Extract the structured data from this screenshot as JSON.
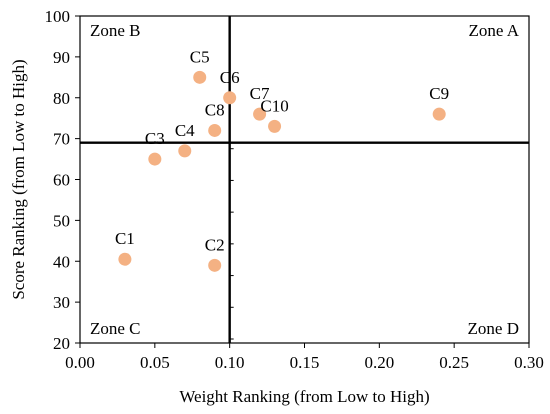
{
  "chart_data": {
    "type": "scatter",
    "xlabel": "Weight Ranking (from Low to High)",
    "ylabel": "Score Ranking (from Low to High)",
    "xlim": [
      0,
      0.3
    ],
    "ylim": [
      20,
      100
    ],
    "x_ticks": [
      "0.00",
      "0.05",
      "0.10",
      "0.15",
      "0.20",
      "0.25",
      "0.30"
    ],
    "x_tick_values": [
      0,
      0.05,
      0.1,
      0.15,
      0.2,
      0.25,
      0.3
    ],
    "y_ticks": [
      "20",
      "30",
      "40",
      "50",
      "60",
      "70",
      "80",
      "90",
      "100"
    ],
    "y_tick_values": [
      20,
      30,
      40,
      50,
      60,
      70,
      80,
      90,
      100
    ],
    "grid": false,
    "divider_x": 0.1,
    "divider_y": 69,
    "zones": [
      {
        "label": "Zone A",
        "position": "top-right"
      },
      {
        "label": "Zone B",
        "position": "top-left"
      },
      {
        "label": "Zone C",
        "position": "bottom-left"
      },
      {
        "label": "Zone D",
        "position": "bottom-right"
      }
    ],
    "marker_color": "#F4B183",
    "points": [
      {
        "label": "C1",
        "x": 0.03,
        "y": 40.5
      },
      {
        "label": "C2",
        "x": 0.09,
        "y": 39
      },
      {
        "label": "C3",
        "x": 0.05,
        "y": 65
      },
      {
        "label": "C4",
        "x": 0.07,
        "y": 67
      },
      {
        "label": "C5",
        "x": 0.08,
        "y": 85
      },
      {
        "label": "C6",
        "x": 0.1,
        "y": 80
      },
      {
        "label": "C7",
        "x": 0.12,
        "y": 76
      },
      {
        "label": "C8",
        "x": 0.09,
        "y": 72
      },
      {
        "label": "C9",
        "x": 0.24,
        "y": 76
      },
      {
        "label": "C10",
        "x": 0.13,
        "y": 73
      }
    ]
  }
}
